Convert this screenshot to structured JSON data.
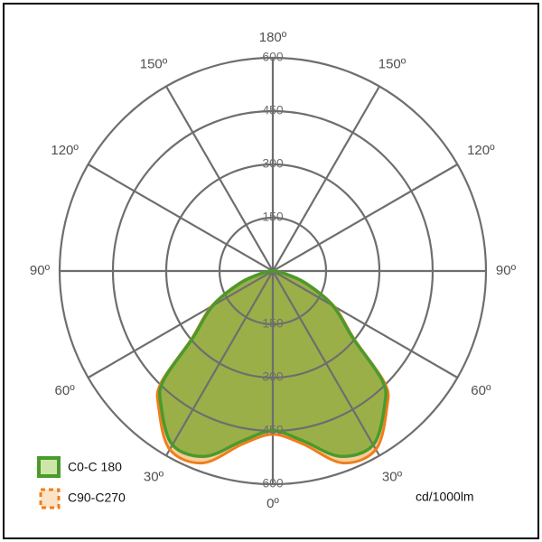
{
  "chart_data": {
    "type": "polar",
    "unit": "cd/1000lm",
    "radial_ticks": [
      150,
      300,
      450,
      600
    ],
    "radial_tick_labels": [
      "150",
      "300",
      "450",
      "600"
    ],
    "rmax": 600,
    "angle_labels": {
      "top": "180º",
      "upper_left": "150º",
      "upper_right": "150º",
      "mid_upper_left": "120º",
      "mid_upper_right": "120º",
      "left": "90º",
      "right": "90º",
      "lower_left": "60º",
      "lower_right": "60º",
      "bottom_left": "30º",
      "bottom_right": "30º",
      "bottom": "0º"
    },
    "grid": true,
    "legend_position": "bottom-left",
    "series": [
      {
        "name": "C90-C270",
        "color": "#f07d1c",
        "fill": "#f5c98f",
        "gamma_deg": [
          0,
          10,
          20,
          30,
          40,
          45,
          50,
          60,
          70,
          80,
          90
        ],
        "intensity": [
          460,
          495,
          575,
          580,
          500,
          445,
          300,
          200,
          100,
          30,
          0
        ]
      },
      {
        "name": "C0-C 180",
        "color": "#4a9a2c",
        "fill": "#8aa93a",
        "gamma_deg": [
          0,
          10,
          20,
          30,
          40,
          45,
          50,
          60,
          70,
          80,
          90
        ],
        "intensity": [
          450,
          485,
          555,
          565,
          490,
          435,
          295,
          195,
          95,
          25,
          0
        ]
      }
    ]
  }
}
